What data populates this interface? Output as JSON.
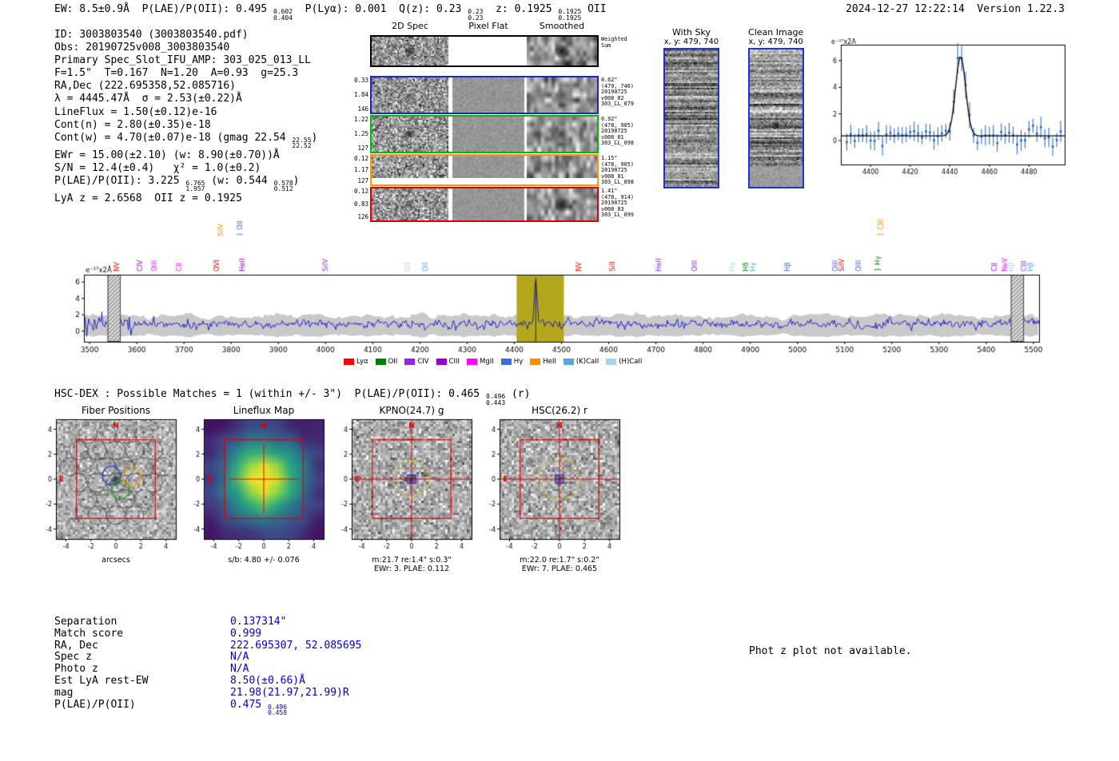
{
  "header": {
    "left_segments": [
      {
        "t": "EW: 8.5±0.9Å  P(LAE)/P(OII): 0.495 "
      },
      {
        "sup": "0.602",
        "sub": "0.404"
      },
      {
        "t": "  P(Lyα): 0.001  Q(z): 0.23 "
      },
      {
        "sup": "0.23",
        "sub": "0.23"
      },
      {
        "t": "  z: 0.1925 "
      },
      {
        "sup": "0.1925",
        "sub": "0.1925"
      },
      {
        "t": " OII"
      }
    ],
    "right": "2024-12-27 12:22:14  Version 1.22.3"
  },
  "info_lines": [
    [
      {
        "t": "ID: 3003803540 (3003803540.pdf)"
      }
    ],
    [
      {
        "t": "Obs: 20190725v008_3003803540"
      }
    ],
    [
      {
        "t": "Primary Spec_Slot_IFU_AMP: 303_025_013_LL"
      }
    ],
    [
      {
        "t": "F=1.5\"  T=0.167  N=1.20  A=0.93  g=25.3"
      }
    ],
    [
      {
        "t": "RA,Dec (222.695358,52.085716)"
      }
    ],
    [
      {
        "t": "λ = 4445.47Å  σ = 2.53(±0.22)Å"
      }
    ],
    [
      {
        "t": "LineFlux = 1.50(±0.12)e-16"
      }
    ],
    [
      {
        "t": "Cont(n) = 2.80(±0.35)e-18"
      }
    ],
    [
      {
        "t": "Cont(w) = 4.70(±0.07)e-18 (gmag 22.54 "
      },
      {
        "sup": "22.55",
        "sub": "22.52"
      },
      {
        "t": ")"
      }
    ],
    [
      {
        "t": "EWr = 15.00(±2.10) (w: 8.90(±0.70))Å"
      }
    ],
    [
      {
        "t": "S/N = 12.4(±0.4)   χ² = 1.0(±0.2)"
      }
    ],
    [
      {
        "t": "P(LAE)/P(OII): 3.225 "
      },
      {
        "sup": "6.765",
        "sub": "1.957"
      },
      {
        "t": " (w: 0.544 "
      },
      {
        "sup": "0.578",
        "sub": "0.512"
      },
      {
        "t": ")"
      }
    ],
    [
      {
        "t": "LyA z = 2.6568  OII z = 0.1925"
      }
    ]
  ],
  "spec2d": {
    "col_headers": [
      "2D Spec",
      "Pixel Flat",
      "Smoothed"
    ],
    "weighted": {
      "info": [
        "Weighted",
        "Sum"
      ]
    },
    "rows": [
      {
        "values": [
          "0.33",
          "1.84",
          "146"
        ],
        "color": "#2222cc",
        "info": [
          "0.62\"",
          "(479, 740)",
          "20190725",
          "v008_02",
          "303_LL_079"
        ]
      },
      {
        "values": [
          "1.22",
          "1.25",
          "127"
        ],
        "color": "#00bb00",
        "info": [
          "0.92\"",
          "(478, 905)",
          "20190725",
          "v008_01",
          "303_LL_098"
        ]
      },
      {
        "values": [
          "0.12",
          "1.17",
          "127"
        ],
        "color": "#ff9900",
        "info": [
          "1.15\"",
          "(478, 905)",
          "20190725",
          "v008_01",
          "303_LL_098"
        ]
      },
      {
        "values": [
          "0.12",
          "0.83",
          "126"
        ],
        "color": "#dd0000",
        "info": [
          "1.41\"",
          "(478, 914)",
          "20190725",
          "v008_03",
          "303_LL_099"
        ]
      }
    ]
  },
  "sky_panels": [
    {
      "title": "With Sky",
      "coords": "x, y: 479, 740"
    },
    {
      "title": "Clean Image",
      "coords": "x, y: 479, 740"
    }
  ],
  "hsc_dex_segments": [
    {
      "t": "HSC-DEX : Possible Matches = 1 (within +/- 3\")  P(LAE)/P(OII): 0.465 "
    },
    {
      "sup": "0.496",
      "sub": "0.443"
    },
    {
      "t": " (r)"
    }
  ],
  "cutouts": {
    "ticks": [
      -4,
      -2,
      0,
      2,
      4
    ],
    "compass": {
      "n": "N",
      "e": "E"
    },
    "panels": [
      {
        "title": "Fiber Positions",
        "cap1": "arcsecs",
        "cap2": ""
      },
      {
        "title": "Lineflux Map",
        "cap1": "s/b: 4.80 +/- 0.076",
        "cap2": ""
      },
      {
        "title": "KPNO(24.7) g",
        "cap1": "m:21.7 re:1.4\" s:0.3\"",
        "cap2": "EWr: 3. PLAE: 0.112"
      },
      {
        "title": "HSC(26.2) r",
        "cap1": "m:22.0 re:1.7\" s:0.2\"",
        "cap2": "EWr: 7. PLAE: 0.465"
      }
    ]
  },
  "match_table": {
    "rows": [
      {
        "label": "Separation",
        "value": [
          {
            "t": "0.137314\""
          }
        ]
      },
      {
        "label": "Match score",
        "value": [
          {
            "t": "0.999"
          }
        ]
      },
      {
        "label": "RA, Dec",
        "value": [
          {
            "t": "222.695307, 52.085695"
          }
        ]
      },
      {
        "label": "Spec z",
        "value": [
          {
            "t": "N/A"
          }
        ]
      },
      {
        "label": "Photo z",
        "value": [
          {
            "t": "N/A"
          }
        ]
      },
      {
        "label": "Est LyA rest-EW",
        "value": [
          {
            "t": "8.50(±0.66)Å"
          }
        ]
      },
      {
        "label": "mag",
        "value": [
          {
            "t": "21.98(21.97,21.99)R"
          }
        ]
      },
      {
        "label": "P(LAE)/P(OII)",
        "value": [
          {
            "t": "0.475 "
          },
          {
            "sup": "0.496",
            "sub": "0.458"
          }
        ]
      }
    ]
  },
  "photz_note": "Phot z plot not available.",
  "chart_data": [
    {
      "type": "scatter",
      "title": "Emission line Gaussian fit inset",
      "units_label": "e⁻¹⁷x2Å",
      "xlim": [
        4385,
        4498
      ],
      "ylim": [
        -1.8,
        7.2
      ],
      "xticks": [
        4400,
        4420,
        4440,
        4460,
        4480
      ],
      "yticks": [
        0,
        2,
        4,
        6
      ],
      "fit": {
        "center": 4445.47,
        "sigma": 2.53,
        "amplitude": 6.0,
        "baseline": 0.35
      },
      "point_step": 2,
      "noise_sd": 0.38,
      "point_color": "#2060c0",
      "fit_color": "#000000"
    },
    {
      "type": "line",
      "title": "Full HETDEX spectrum",
      "units_label": "e⁻¹⁷x2Å",
      "xlim": [
        3488,
        5512
      ],
      "ylim": [
        -1.3,
        6.9
      ],
      "xticks": [
        3500,
        3600,
        3700,
        3800,
        3900,
        4000,
        4100,
        4200,
        4300,
        4400,
        4500,
        4600,
        4700,
        4800,
        4900,
        5000,
        5100,
        5200,
        5300,
        5400,
        5500
      ],
      "yticks": [
        0,
        2,
        4,
        6
      ],
      "continuum": 0.85,
      "noise_sd": 0.42,
      "emission": {
        "center": 4445.47,
        "sigma": 2.6,
        "amplitude": 5.5
      },
      "highlight_band": [
        4405,
        4505
      ],
      "highlight_color": "#b3a81c",
      "masked_bands": [
        [
          3538,
          3566
        ],
        [
          5452,
          5480
        ]
      ],
      "error_band": [
        -0.55,
        1.85
      ],
      "line_color": "#0000cc",
      "band_color": "#c9c9c9",
      "line_labels": [
        [
          3558,
          "NV",
          "#e00000",
          0
        ],
        [
          3607,
          "CIV",
          "#9400d3",
          0
        ],
        [
          3637,
          "OIII",
          "#ff00ff",
          0
        ],
        [
          3690,
          "CII",
          "#ff00ff",
          0
        ],
        [
          3770,
          "OVI",
          "#e00000",
          0
        ],
        [
          3777,
          "SiIV",
          "#ff8c00",
          1
        ],
        [
          3818,
          "} OII",
          "#4169e1",
          1
        ],
        [
          3823,
          "HeII",
          "#9400d3",
          0
        ],
        [
          3999,
          "SiIV",
          "#8a2be2",
          0
        ],
        [
          4174,
          "OII",
          "#a8d4f0",
          0
        ],
        [
          4212,
          "OII",
          "#56a8e0",
          0
        ],
        [
          4537,
          "NV",
          "#e00000",
          0
        ],
        [
          4608,
          "SiII",
          "#e00000",
          0
        ],
        [
          4705,
          "HeII",
          "#8a2be2",
          0
        ],
        [
          4782,
          "OIII",
          "#8a2be2",
          0
        ],
        [
          4861,
          "Hγ",
          "#a8d4f0",
          0
        ],
        [
          4891,
          "Hδ",
          "#008000",
          0
        ],
        [
          4905,
          "Hγ",
          "#56a8e0",
          0
        ],
        [
          4979,
          "Hβ",
          "#4169e1",
          0
        ],
        [
          5080,
          "OIII",
          "#4169e1",
          0
        ],
        [
          5094,
          "SiIV",
          "#e00000",
          0
        ],
        [
          5129,
          "OIII",
          "#4169e1",
          0
        ],
        [
          5170,
          "} Hγ",
          "#008000",
          0
        ],
        [
          5177,
          "} CIII",
          "#ff8c00",
          1
        ],
        [
          5417,
          "CII",
          "#9400d3",
          0
        ],
        [
          5440,
          "NeV",
          "#ff00ff",
          0
        ],
        [
          5452,
          "Hβ",
          "#a8d4f0",
          0
        ],
        [
          5479,
          "CIII",
          "#8a2be2",
          0
        ],
        [
          5494,
          "Hβ",
          "#56a8e0",
          0
        ]
      ],
      "legend": [
        {
          "label": "Lyα",
          "color": "#ff0000"
        },
        {
          "label": "OII",
          "color": "#008000"
        },
        {
          "label": "CIV",
          "color": "#8a2be2"
        },
        {
          "label": "CIII",
          "color": "#9400d3"
        },
        {
          "label": "MgII",
          "color": "#ff00ff"
        },
        {
          "label": "Hγ",
          "color": "#4169e1"
        },
        {
          "label": "HeII",
          "color": "#ff8c00"
        },
        {
          "label": "(K)CaII",
          "color": "#56a8e0"
        },
        {
          "label": "(H)CaII",
          "color": "#a8d4f0"
        }
      ]
    },
    {
      "type": "heatmap",
      "title": "Lineflux Map",
      "colormap": "viridis",
      "signal_to_background": "s/b: 4.80 +/- 0.076"
    }
  ]
}
